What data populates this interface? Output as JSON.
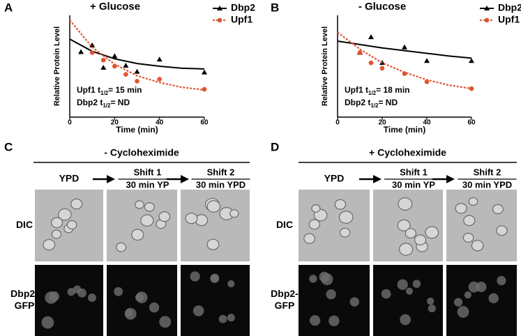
{
  "chart_data": [
    {
      "type": "scatter",
      "panel": "A",
      "title": "+ Glucose",
      "x_label": "Time (min)",
      "y_label": "Relative Protein Level",
      "xlim": [
        0,
        60
      ],
      "xticks": [
        0,
        20,
        40,
        60
      ],
      "ylim": [
        0,
        150
      ],
      "series": [
        {
          "name": "Dbp2",
          "color": "#000000",
          "marker": "triangle",
          "line_style": "solid",
          "x": [
            5,
            10,
            15,
            20,
            25,
            30,
            40,
            60
          ],
          "values": [
            96,
            106,
            73,
            90,
            76,
            67,
            85,
            66
          ],
          "fit_x": [
            0,
            10,
            20,
            30,
            40,
            50,
            60
          ],
          "fit_values": [
            115,
            97,
            86,
            79,
            75,
            72,
            71
          ]
        },
        {
          "name": "Upf1",
          "color": "#e0532f",
          "marker": "circle",
          "line_style": "dotted",
          "x": [
            10,
            15,
            20,
            25,
            30,
            40,
            60
          ],
          "values": [
            95,
            84,
            75,
            63,
            53,
            56,
            41
          ],
          "fit_x": [
            0,
            10,
            20,
            30,
            40,
            50,
            60
          ],
          "fit_values": [
            143,
            103,
            78,
            61,
            51,
            44,
            40
          ]
        }
      ],
      "annotations": [
        {
          "text": "Upf1 t",
          "subscript": "1/2",
          "suffix": "= 15 min"
        },
        {
          "text": "Dbp2 t",
          "subscript": "1/2",
          "suffix": "= ND"
        }
      ]
    },
    {
      "type": "scatter",
      "panel": "B",
      "title": "- Glucose",
      "x_label": "Time (min)",
      "y_label": "Relative Protein Level",
      "xlim": [
        0,
        60
      ],
      "xticks": [
        0,
        20,
        40,
        60
      ],
      "ylim": [
        0,
        150
      ],
      "series": [
        {
          "name": "Dbp2",
          "color": "#000000",
          "marker": "triangle",
          "line_style": "solid",
          "x": [
            10,
            15,
            20,
            30,
            40,
            60
          ],
          "values": [
            95,
            118,
            80,
            103,
            83,
            83
          ],
          "fit_x": [
            0,
            10,
            20,
            30,
            40,
            50,
            60
          ],
          "fit_values": [
            112,
            107,
            102,
            98,
            94,
            90,
            87
          ]
        },
        {
          "name": "Upf1",
          "color": "#e0532f",
          "marker": "circle",
          "line_style": "dotted",
          "x": [
            10,
            15,
            20,
            30,
            40,
            60
          ],
          "values": [
            95,
            80,
            72,
            64,
            52,
            42
          ],
          "fit_x": [
            0,
            10,
            20,
            30,
            40,
            50,
            60
          ],
          "fit_values": [
            125,
            100,
            80,
            66,
            55,
            47,
            42
          ]
        }
      ],
      "annotations": [
        {
          "text": "Upf1 t",
          "subscript": "1/2",
          "suffix": "= 18 min"
        },
        {
          "text": "Dbp2 t",
          "subscript": "1/2",
          "suffix": "= ND"
        }
      ]
    }
  ],
  "panels": [
    {
      "label": "C",
      "title": "- Cycloheximide",
      "columns": [
        {
          "lines": [
            "YPD"
          ]
        },
        {
          "lines": [
            "Shift 1",
            "30 min YP"
          ]
        },
        {
          "lines": [
            "Shift 2",
            "30 min YPD"
          ]
        }
      ],
      "rows": [
        {
          "lines": [
            "DIC"
          ]
        },
        {
          "lines": [
            "Dbp2-",
            "GFP"
          ]
        }
      ]
    },
    {
      "label": "D",
      "title": "+ Cycloheximide",
      "columns": [
        {
          "lines": [
            "YPD"
          ]
        },
        {
          "lines": [
            "Shift 1",
            "30 min YP"
          ]
        },
        {
          "lines": [
            "Shift 2",
            "30 min YPD"
          ]
        }
      ],
      "rows": [
        {
          "lines": [
            "DIC"
          ]
        },
        {
          "lines": [
            "Dbp2-",
            "GFP"
          ]
        }
      ]
    }
  ]
}
